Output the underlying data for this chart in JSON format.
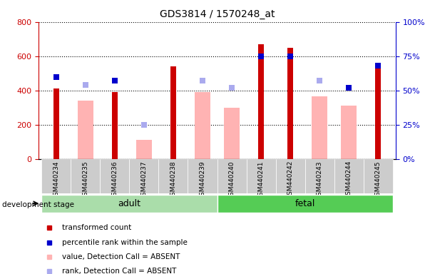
{
  "title": "GDS3814 / 1570248_at",
  "samples": [
    "GSM440234",
    "GSM440235",
    "GSM440236",
    "GSM440237",
    "GSM440238",
    "GSM440239",
    "GSM440240",
    "GSM440241",
    "GSM440242",
    "GSM440243",
    "GSM440244",
    "GSM440245"
  ],
  "red_bars": [
    410,
    null,
    390,
    null,
    540,
    null,
    null,
    670,
    650,
    null,
    null,
    550
  ],
  "pink_bars": [
    null,
    340,
    null,
    110,
    null,
    390,
    300,
    null,
    null,
    365,
    310,
    null
  ],
  "blue_squares_pct": [
    60,
    null,
    57,
    null,
    null,
    null,
    null,
    75,
    75,
    null,
    52,
    68
  ],
  "lavender_squares_pct": [
    null,
    54,
    null,
    25,
    null,
    57,
    52,
    null,
    null,
    57,
    null,
    null
  ],
  "red_bar_color": "#cc0000",
  "pink_bar_color": "#ffb3b3",
  "blue_sq_color": "#0000cc",
  "lavender_sq_color": "#aaaaee",
  "left_ylim": [
    0,
    800
  ],
  "right_ylim": [
    0,
    100
  ],
  "left_yticks": [
    0,
    200,
    400,
    600,
    800
  ],
  "right_yticks": [
    0,
    25,
    50,
    75,
    100
  ],
  "right_yticklabels": [
    "0%",
    "25%",
    "50%",
    "75%",
    "100%"
  ],
  "adult_color": "#aaddaa",
  "fetal_color": "#55cc55",
  "gray_col_color": "#cccccc",
  "legend_items": [
    {
      "label": "transformed count",
      "color": "#cc0000"
    },
    {
      "label": "percentile rank within the sample",
      "color": "#0000cc"
    },
    {
      "label": "value, Detection Call = ABSENT",
      "color": "#ffb3b3"
    },
    {
      "label": "rank, Detection Call = ABSENT",
      "color": "#aaaaee"
    }
  ]
}
